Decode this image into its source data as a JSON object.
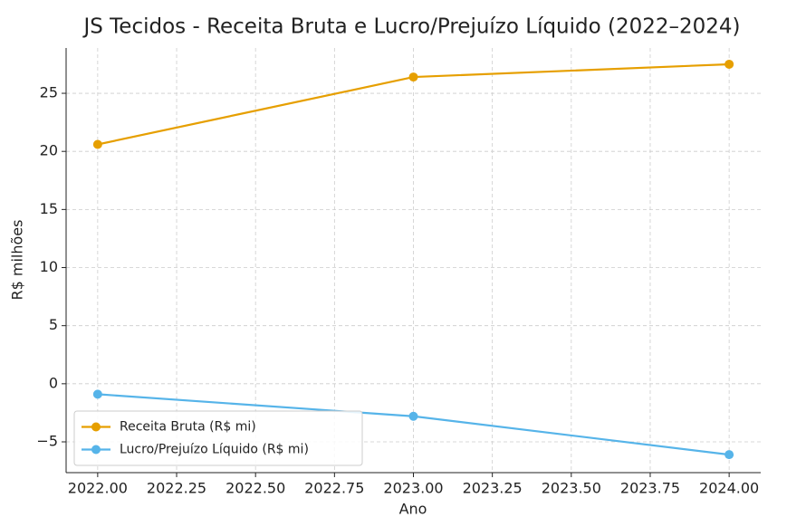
{
  "chart_data": {
    "type": "line",
    "title": "JS Tecidos - Receita Bruta e Lucro/Prejuízo Líquido (2022–2024)",
    "x_label": "Ano",
    "y_label": "R$ milhões",
    "x": [
      2022,
      2023,
      2024
    ],
    "series": [
      {
        "name": "Receita Bruta (R$ mi)",
        "color": "#e69f00",
        "values": [
          20.6,
          26.4,
          27.5
        ]
      },
      {
        "name": "Lucro/Prejuízo Líquido (R$ mi)",
        "color": "#56b4e9",
        "values": [
          -0.9,
          -2.8,
          -6.1
        ]
      }
    ],
    "xlim": [
      2021.9,
      2024.1
    ],
    "xticks": [
      {
        "value": 2022,
        "label": "2022.00"
      },
      {
        "value": 2022.25,
        "label": "2022.25"
      },
      {
        "value": 2022.5,
        "label": "2022.50"
      },
      {
        "value": 2022.75,
        "label": "2022.75"
      },
      {
        "value": 2023,
        "label": "2023.00"
      },
      {
        "value": 2023.25,
        "label": "2023.25"
      },
      {
        "value": 2023.5,
        "label": "2023.50"
      },
      {
        "value": 2023.75,
        "label": "2023.75"
      },
      {
        "value": 2024,
        "label": "2024.00"
      }
    ],
    "ylim": [
      -7.65,
      28.9
    ],
    "yticks": [
      {
        "value": -5,
        "label": "−5"
      },
      0,
      5,
      10,
      15,
      20,
      25
    ],
    "grid": true,
    "legend": "lower left"
  }
}
